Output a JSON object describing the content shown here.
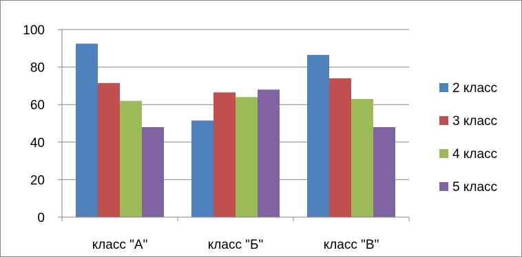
{
  "chart_data": {
    "type": "bar",
    "categories": [
      "класс \"А\"",
      "класс \"Б\"",
      "класс \"В\""
    ],
    "series": [
      {
        "name": "2 класс",
        "color": "#4F81BD",
        "values": [
          92.5,
          51.5,
          86.5
        ]
      },
      {
        "name": "3 класс",
        "color": "#C0504D",
        "values": [
          71.5,
          66.5,
          74
        ]
      },
      {
        "name": "4 класс",
        "color": "#9BBB59",
        "values": [
          62,
          64,
          63
        ]
      },
      {
        "name": "5 класс",
        "color": "#8064A2",
        "values": [
          48,
          68,
          48
        ]
      }
    ],
    "y_ticks": [
      "0",
      "20",
      "40",
      "60",
      "80",
      "100"
    ],
    "ylim": [
      0,
      100
    ],
    "grid": true,
    "legend_position": "right"
  }
}
